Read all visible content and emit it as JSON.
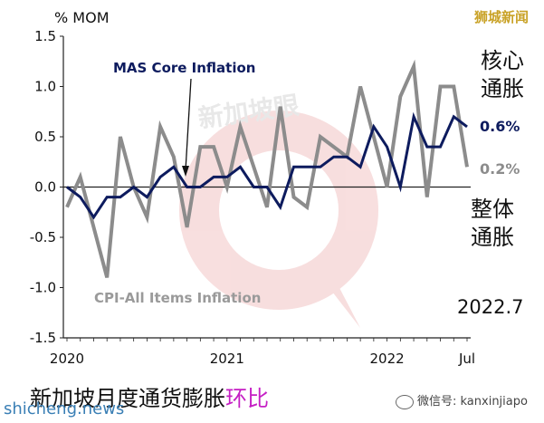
{
  "chart_data": {
    "type": "line",
    "ylabel": "% MOM",
    "ylim": [
      -1.5,
      1.5
    ],
    "y_ticks": [
      "1.5",
      "1.0",
      "0.5",
      "0.0",
      "-0.5",
      "-1.0",
      "-1.5"
    ],
    "x_tick_labels": [
      {
        "label": "2020",
        "index": 0
      },
      {
        "label": "2021",
        "index": 12
      },
      {
        "label": "2022",
        "index": 24
      },
      {
        "label": "Jul",
        "index": 30
      }
    ],
    "series": [
      {
        "name": "MAS Core Inflation",
        "color": "#0d1b5e",
        "values": [
          0.0,
          -0.1,
          -0.3,
          -0.1,
          -0.1,
          0.0,
          -0.1,
          0.1,
          0.2,
          0.0,
          0.0,
          0.1,
          0.1,
          0.2,
          0.0,
          0.0,
          -0.2,
          0.2,
          0.2,
          0.2,
          0.3,
          0.3,
          0.2,
          0.6,
          0.4,
          0.0,
          0.7,
          0.4,
          0.4,
          0.7,
          0.6
        ],
        "end_label": "0.6%"
      },
      {
        "name": "CPI-All Items Inflation",
        "color": "#8c8c8c",
        "values": [
          -0.2,
          0.1,
          -0.4,
          -0.9,
          0.5,
          0.0,
          -0.3,
          0.6,
          0.3,
          -0.4,
          0.4,
          0.4,
          0.0,
          0.6,
          0.2,
          -0.2,
          0.8,
          -0.1,
          -0.2,
          0.5,
          0.4,
          0.3,
          1.0,
          0.5,
          0.0,
          0.9,
          1.2,
          -0.1,
          1.0,
          1.0,
          0.2
        ],
        "end_label": "0.2%"
      }
    ],
    "annotations": {
      "core_series_label": "MAS Core Inflation",
      "all_series_label": "CPI-All Items Inflation"
    }
  },
  "labels": {
    "brand": "狮城新闻",
    "core_label": "核心通胀",
    "all_label": "整体通胀",
    "date": "2022.7",
    "title_main": "新加坡月度通货膨胀",
    "title_highlight": "环比",
    "site": "shicheng.news",
    "wechat": "微信号: kanxinjiapo",
    "watermark": "新加坡眼"
  },
  "colors": {
    "core": "#0d1b5e",
    "all": "#8c8c8c",
    "watermark": "#e58b8b",
    "highlight": "#c51fc4"
  }
}
